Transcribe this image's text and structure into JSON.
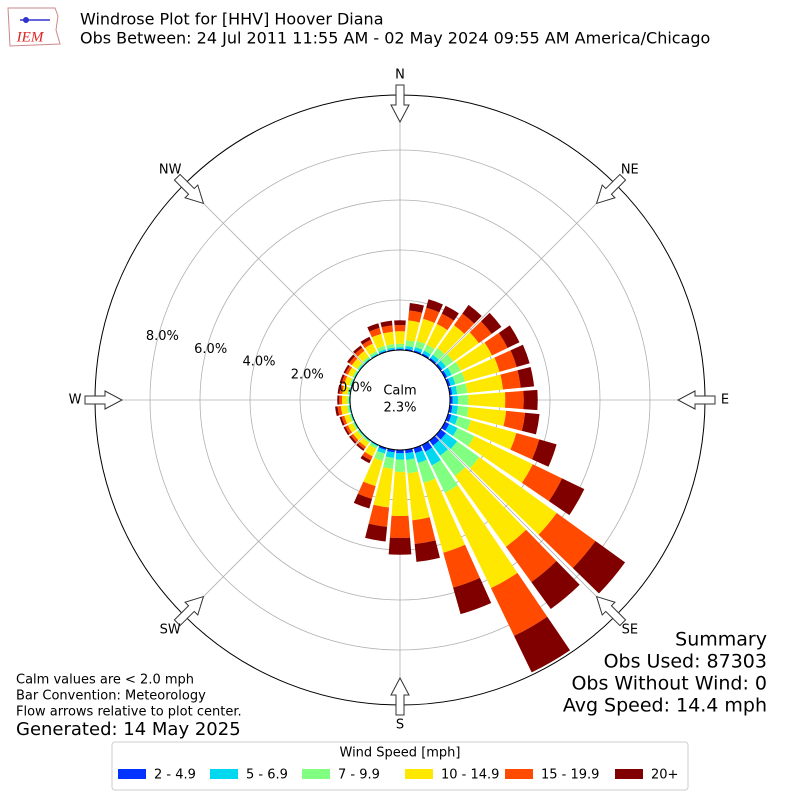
{
  "chart_data": {
    "type": "windrose",
    "logo_text": "IEM",
    "title": "Windrose Plot for [HHV] Hoover Diana",
    "subtitle": "Obs Between: 24 Jul 2011 11:55 AM - 02 May 2024 09:55 AM America/Chicago",
    "directions": [
      0,
      10,
      20,
      30,
      40,
      50,
      60,
      70,
      80,
      90,
      100,
      110,
      120,
      130,
      140,
      150,
      160,
      170,
      180,
      190,
      200,
      210,
      220,
      230,
      240,
      250,
      260,
      270,
      280,
      290,
      300,
      310,
      320,
      330,
      340,
      350
    ],
    "compass": [
      {
        "value": 0,
        "label": "N"
      },
      {
        "value": 45,
        "label": "NE"
      },
      {
        "value": 90,
        "label": "E"
      },
      {
        "value": 135,
        "label": "SE"
      },
      {
        "value": 180,
        "label": "S"
      },
      {
        "value": 225,
        "label": "SW"
      },
      {
        "value": 270,
        "label": "W"
      },
      {
        "value": 315,
        "label": "NW"
      }
    ],
    "rlim": [
      0,
      10.2
    ],
    "rticks": [
      {
        "value": 0,
        "label": "0.0%"
      },
      {
        "value": 2,
        "label": "2.0%"
      },
      {
        "value": 4,
        "label": "4.0%"
      },
      {
        "value": 6,
        "label": "6.0%"
      },
      {
        "value": 8,
        "label": "8.0%"
      }
    ],
    "calm_label": "Calm",
    "calm": {
      "value": 2.3,
      "label": "2.3%"
    },
    "legend_title": "Wind Speed [mph]",
    "series": [
      {
        "name": "2 - 4.9",
        "color": "#0033ff",
        "values": [
          0.04,
          0.06,
          0.07,
          0.07,
          0.08,
          0.09,
          0.1,
          0.1,
          0.1,
          0.11,
          0.11,
          0.14,
          0.19,
          0.27,
          0.25,
          0.3,
          0.21,
          0.14,
          0.13,
          0.11,
          0.08,
          0.02,
          0.02,
          0.02,
          0.02,
          0.02,
          0.02,
          0.02,
          0.02,
          0.02,
          0.02,
          0.02,
          0.02,
          0.02,
          0.04,
          0.04
        ]
      },
      {
        "name": "5 - 6.9",
        "color": "#00d8f0",
        "values": [
          0.07,
          0.11,
          0.13,
          0.13,
          0.16,
          0.18,
          0.2,
          0.2,
          0.2,
          0.21,
          0.22,
          0.27,
          0.37,
          0.55,
          0.5,
          0.61,
          0.41,
          0.27,
          0.25,
          0.22,
          0.15,
          0.05,
          0.03,
          0.03,
          0.03,
          0.03,
          0.04,
          0.03,
          0.03,
          0.03,
          0.03,
          0.04,
          0.04,
          0.05,
          0.07,
          0.07
        ]
      },
      {
        "name": "7 - 9.9",
        "color": "#80ff80",
        "values": [
          0.14,
          0.23,
          0.26,
          0.26,
          0.32,
          0.36,
          0.4,
          0.41,
          0.41,
          0.42,
          0.43,
          0.54,
          0.74,
          1.09,
          1.0,
          1.21,
          0.83,
          0.54,
          0.5,
          0.44,
          0.3,
          0.1,
          0.06,
          0.06,
          0.06,
          0.06,
          0.07,
          0.06,
          0.06,
          0.06,
          0.06,
          0.07,
          0.08,
          0.1,
          0.14,
          0.14
        ]
      },
      {
        "name": "10 - 14.9",
        "color": "#ffe800",
        "values": [
          0.5,
          0.8,
          0.92,
          0.92,
          1.13,
          1.26,
          1.39,
          1.43,
          1.43,
          1.47,
          1.51,
          1.89,
          2.6,
          3.82,
          3.49,
          4.24,
          2.9,
          1.89,
          1.76,
          1.55,
          1.05,
          0.34,
          0.21,
          0.21,
          0.21,
          0.21,
          0.25,
          0.21,
          0.21,
          0.21,
          0.21,
          0.25,
          0.29,
          0.34,
          0.5,
          0.5
        ]
      },
      {
        "name": "15 - 19.9",
        "color": "#ff4a00",
        "values": [
          0.25,
          0.4,
          0.46,
          0.46,
          0.57,
          0.63,
          0.69,
          0.71,
          0.71,
          0.74,
          0.76,
          0.95,
          1.3,
          1.91,
          1.74,
          2.12,
          1.45,
          0.95,
          0.88,
          0.78,
          0.53,
          0.17,
          0.11,
          0.11,
          0.11,
          0.11,
          0.13,
          0.11,
          0.11,
          0.11,
          0.11,
          0.13,
          0.15,
          0.17,
          0.25,
          0.25
        ]
      },
      {
        "name": "20+",
        "color": "#800000",
        "values": [
          0.19,
          0.3,
          0.35,
          0.35,
          0.43,
          0.48,
          0.53,
          0.54,
          0.54,
          0.56,
          0.58,
          0.72,
          0.99,
          1.46,
          1.33,
          1.62,
          1.1,
          0.72,
          0.67,
          0.59,
          0.4,
          0.13,
          0.08,
          0.08,
          0.08,
          0.08,
          0.1,
          0.08,
          0.08,
          0.08,
          0.08,
          0.1,
          0.11,
          0.13,
          0.19,
          0.19
        ]
      }
    ],
    "summary": [
      "Summary",
      "Obs Used: 87303",
      "Obs Without Wind: 0",
      "Avg Speed: 14.4 mph"
    ],
    "notes": [
      "Calm values are < 2.0 mph",
      "Bar Convention: Meteorology",
      "Flow arrows relative to plot center."
    ],
    "generated": "Generated: 14 May 2025"
  }
}
